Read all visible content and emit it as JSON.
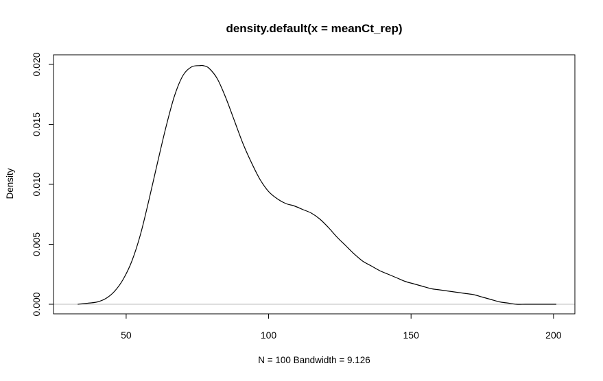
{
  "chart_data": {
    "type": "line",
    "title": "density.default(x = meanCt_rep)",
    "xlabel": "N = 100   Bandwidth = 9.126",
    "ylabel": "Density",
    "xlim": [
      24.5,
      207.5
    ],
    "ylim": [
      -0.0008,
      0.0208
    ],
    "x_ticks": [
      50,
      100,
      150,
      200
    ],
    "x_tick_labels": [
      "50",
      "100",
      "150",
      "200"
    ],
    "y_ticks": [
      0,
      0.005,
      0.01,
      0.015,
      0.02
    ],
    "y_tick_labels": [
      "0.000",
      "0.005",
      "0.010",
      "0.015",
      "0.020"
    ],
    "baseline": 0,
    "grid": false,
    "line_color": "#000000",
    "baseline_color": "#bebebe",
    "series": [
      {
        "x": [
          33,
          37,
          40,
          43,
          46,
          49,
          52,
          55,
          58,
          61,
          64,
          67,
          70,
          73,
          76,
          77,
          79,
          82,
          85,
          88,
          91,
          94,
          97,
          100,
          103,
          106,
          109,
          112,
          115,
          118,
          121,
          124,
          127,
          130,
          133,
          136,
          139,
          142,
          145,
          148,
          151,
          154,
          157,
          160,
          163,
          166,
          169,
          172,
          175,
          178,
          181,
          184,
          187,
          190,
          193,
          196,
          199,
          201
        ],
        "y": [
          0.0,
          0.0001,
          0.0002,
          0.0005,
          0.0011,
          0.0021,
          0.0036,
          0.0058,
          0.0087,
          0.0118,
          0.0148,
          0.0174,
          0.0191,
          0.0198,
          0.0199,
          0.0199,
          0.0197,
          0.0188,
          0.0172,
          0.0153,
          0.0134,
          0.0118,
          0.0104,
          0.0094,
          0.0088,
          0.0084,
          0.0082,
          0.0079,
          0.0076,
          0.0071,
          0.0064,
          0.0056,
          0.0049,
          0.0042,
          0.0036,
          0.0032,
          0.0028,
          0.0025,
          0.0022,
          0.0019,
          0.0017,
          0.0015,
          0.0013,
          0.0012,
          0.0011,
          0.001,
          0.0009,
          0.0008,
          0.0006,
          0.0004,
          0.0002,
          0.0001,
          0.0,
          0.0,
          0.0,
          0.0,
          0.0,
          0.0
        ]
      }
    ]
  }
}
